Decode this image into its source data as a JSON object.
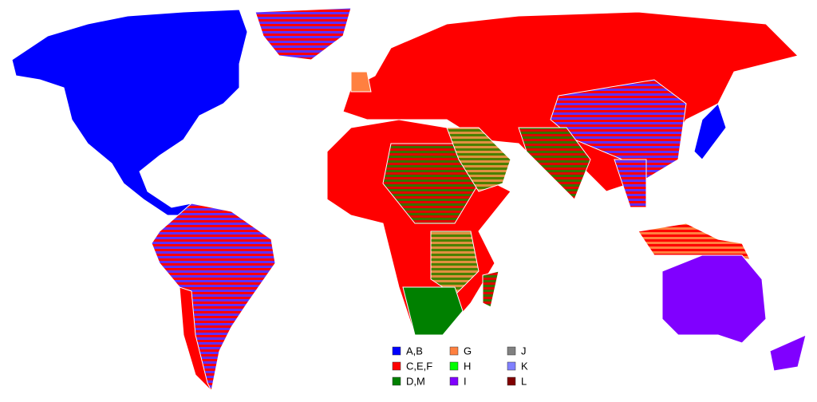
{
  "legend": {
    "items": [
      {
        "label": "A,B",
        "color": "#0000ff"
      },
      {
        "label": "C,E,F",
        "color": "#ff0000"
      },
      {
        "label": "D,M",
        "color": "#008000"
      },
      {
        "label": "G",
        "color": "#ff8040"
      },
      {
        "label": "H",
        "color": "#00ff00"
      },
      {
        "label": "I",
        "color": "#8000ff"
      },
      {
        "label": "J",
        "color": "#808080"
      },
      {
        "label": "K",
        "color": "#8080ff"
      },
      {
        "label": "L",
        "color": "#800000"
      }
    ]
  }
}
